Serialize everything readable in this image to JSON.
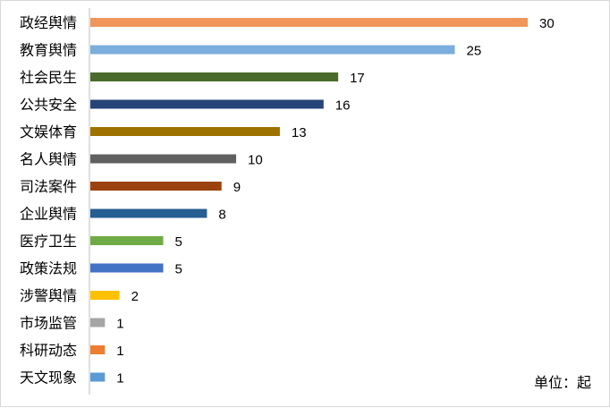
{
  "chart_data": {
    "type": "bar",
    "orientation": "horizontal",
    "categories": [
      "政经舆情",
      "教育舆情",
      "社会民生",
      "公共安全",
      "文娱体育",
      "名人舆情",
      "司法案件",
      "企业舆情",
      "医疗卫生",
      "政策法规",
      "涉警舆情",
      "市场监管",
      "科研动态",
      "天文现象"
    ],
    "values": [
      30,
      25,
      17,
      16,
      13,
      10,
      9,
      8,
      5,
      5,
      2,
      1,
      1,
      1
    ],
    "colors": [
      "#f0965a",
      "#7aaedc",
      "#4a6b2c",
      "#264478",
      "#9c7200",
      "#606060",
      "#9b420f",
      "#255e91",
      "#6fab45",
      "#4472c4",
      "#ffc000",
      "#a5a5a5",
      "#ed7d31",
      "#5b9bd5"
    ],
    "xlim": [
      0,
      30
    ],
    "grid": false,
    "legend": "none",
    "unit_note": "单位：起"
  }
}
